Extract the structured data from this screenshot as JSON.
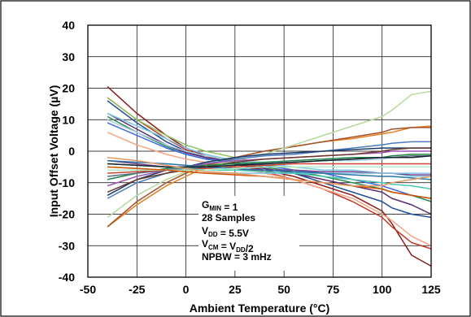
{
  "chart_data": {
    "type": "line",
    "xlabel": "Ambient Temperature (°C)",
    "ylabel": "Input Offset Voltage (µV)",
    "xlim": [
      -50,
      125
    ],
    "ylim": [
      -40,
      40
    ],
    "xticks": [
      -50,
      -25,
      0,
      25,
      50,
      75,
      100,
      125
    ],
    "yticks": [
      -40,
      -30,
      -20,
      -10,
      0,
      10,
      20,
      30,
      40
    ],
    "grid": true,
    "annotation": {
      "lines": [
        {
          "parts": [
            {
              "t": "G"
            },
            {
              "t": "MIN",
              "sub": true
            },
            {
              "t": " = 1"
            }
          ]
        },
        {
          "parts": [
            {
              "t": "28 Samples"
            }
          ]
        },
        {
          "parts": [
            {
              "t": "V"
            },
            {
              "t": "DD",
              "sub": true
            },
            {
              "t": " = 5.5V"
            }
          ]
        },
        {
          "parts": [
            {
              "t": "V"
            },
            {
              "t": "CM",
              "sub": true
            },
            {
              "t": " = V"
            },
            {
              "t": "DD",
              "sub": true
            },
            {
              "t": "/2"
            }
          ]
        },
        {
          "parts": [
            {
              "t": "NPBW = 3 mHz"
            }
          ]
        }
      ]
    },
    "x": [
      -40,
      -25,
      -10,
      0,
      10,
      25,
      40,
      55,
      70,
      85,
      100,
      105,
      115,
      125
    ],
    "series": [
      {
        "color": "#8b1a1a",
        "values": [
          20.5,
          12,
          5,
          1,
          -1.5,
          -4,
          -6,
          -8,
          -11,
          -14,
          -19,
          -23,
          -33,
          -36.5
        ]
      },
      {
        "color": "#c0392b",
        "values": [
          17,
          10,
          4,
          0.5,
          -2,
          -4,
          -6.5,
          -9,
          -12,
          -16,
          -21,
          -24,
          -29,
          -31
        ]
      },
      {
        "color": "#f4a582",
        "values": [
          6,
          2,
          -1,
          -2.5,
          -3.5,
          -5,
          -7,
          -9,
          -12,
          -15,
          -20,
          -22,
          -27,
          -30
        ]
      },
      {
        "color": "#1f4e99",
        "values": [
          16,
          9,
          3,
          0,
          -2,
          -4,
          -5.5,
          -7,
          -10,
          -13,
          -16,
          -18,
          -20,
          -21
        ]
      },
      {
        "color": "#5b2c6f",
        "values": [
          12,
          7,
          2,
          -0.5,
          -2,
          -4,
          -5.5,
          -7,
          -9,
          -11,
          -13,
          -15,
          -17,
          -20
        ]
      },
      {
        "color": "#8fbf5a",
        "values": [
          17,
          10,
          5,
          2,
          0,
          -2,
          -4,
          -6,
          -8,
          -10,
          -12,
          -13,
          -14,
          -15
        ]
      },
      {
        "color": "#2e8b57",
        "values": [
          11,
          6,
          1.5,
          -1,
          -2.5,
          -3.5,
          -5,
          -6.5,
          -8,
          -10,
          -12,
          -13,
          -14,
          -16
        ]
      },
      {
        "color": "#4169e1",
        "values": [
          9,
          5,
          1,
          -1,
          -2.5,
          -3,
          -4.5,
          -6,
          -7,
          -9,
          -11,
          -12,
          -14,
          -15
        ]
      },
      {
        "color": "#7ec8e3",
        "values": [
          12,
          8,
          4,
          1,
          -1,
          -3,
          -4,
          -5,
          -6,
          -6,
          -7,
          -7,
          -8,
          -8
        ]
      },
      {
        "color": "#a9cce3",
        "values": [
          10,
          6,
          2,
          0,
          -1.5,
          -3,
          -3.5,
          -3.5,
          -3,
          -3,
          -2.5,
          -2,
          -2,
          -1.5
        ]
      },
      {
        "color": "#e67e22",
        "values": [
          -24,
          -17,
          -11,
          -8,
          -5,
          -2,
          0,
          1.5,
          3,
          4,
          5.5,
          6,
          7.5,
          8
        ]
      },
      {
        "color": "#a0522d",
        "values": [
          -24,
          -16,
          -10,
          -7,
          -4.5,
          -2,
          0,
          1.5,
          3,
          4.5,
          6,
          7,
          7.5,
          7.5
        ]
      },
      {
        "color": "#b5d99c",
        "values": [
          -21,
          -14,
          -9,
          -6.5,
          -5,
          -3,
          -1,
          2,
          5,
          8,
          11,
          13,
          18,
          19
        ]
      },
      {
        "color": "#4b7bc0",
        "values": [
          -15,
          -10,
          -7,
          -5,
          -4,
          -2.5,
          -1.5,
          -1,
          0,
          1,
          2,
          2.5,
          3,
          3
        ]
      },
      {
        "color": "#1a3a6b",
        "values": [
          -14,
          -9,
          -6,
          -5,
          -3.5,
          -2,
          -1,
          -0.5,
          0,
          0.5,
          1,
          1,
          1,
          1
        ]
      },
      {
        "color": "#9b59b6",
        "values": [
          -11,
          -8,
          -6,
          -5,
          -4,
          -3,
          -2.5,
          -2,
          -1.5,
          -1,
          -0.5,
          0,
          0,
          0
        ]
      },
      {
        "color": "#6b3a2a",
        "values": [
          -13,
          -9,
          -7,
          -6,
          -5,
          -3.5,
          -2.5,
          -2,
          -1.5,
          -1,
          0,
          0.5,
          1,
          1
        ]
      },
      {
        "color": "#1e8449",
        "values": [
          -9,
          -7,
          -5.5,
          -5,
          -4.5,
          -4,
          -3.5,
          -3,
          -2.5,
          -2,
          -2,
          -1.5,
          -1,
          -1
        ]
      },
      {
        "color": "#5d6d7e",
        "values": [
          -8,
          -7,
          -6,
          -5.5,
          -5,
          -4.5,
          -4,
          -3.5,
          -3,
          -2.5,
          -2,
          -2,
          -1.5,
          -1.5
        ]
      },
      {
        "color": "#76448a",
        "values": [
          -3,
          -4,
          -5,
          -5.5,
          -6,
          -6,
          -6,
          -6,
          -6.5,
          -6.5,
          -7,
          -7,
          -7.5,
          -7.5
        ]
      },
      {
        "color": "#cb4335",
        "values": [
          -7,
          -6.5,
          -6,
          -6,
          -5.5,
          -5,
          -4.5,
          -4,
          -4,
          -4,
          -4,
          -4,
          -4,
          -4
        ]
      },
      {
        "color": "#85c1e9",
        "values": [
          -5,
          -5.5,
          -6,
          -6.5,
          -7,
          -7,
          -7,
          -7,
          -7,
          -7,
          -7,
          -7,
          -7,
          -7
        ]
      },
      {
        "color": "#48c9b0",
        "values": [
          -4,
          -4.5,
          -5,
          -5.5,
          -6,
          -6,
          -6.5,
          -7,
          -8,
          -9,
          -10,
          -10.5,
          -11,
          -12
        ]
      },
      {
        "color": "#2874a6",
        "values": [
          -3,
          -3.5,
          -4,
          -4.5,
          -5,
          -5.5,
          -6,
          -6.5,
          -7,
          -7.5,
          -8,
          -8,
          -8.5,
          -9
        ]
      },
      {
        "color": "#abebc6",
        "values": [
          -6,
          -6,
          -6,
          -6,
          -6,
          -5.5,
          -5,
          -5,
          -5,
          -5,
          -5,
          -5,
          -5,
          -5
        ]
      },
      {
        "color": "#d35400",
        "values": [
          -5,
          -5.5,
          -6,
          -6.5,
          -7,
          -7.5,
          -8,
          -9,
          -10,
          -11,
          -12,
          -13,
          -14,
          -15
        ]
      },
      {
        "color": "#17202a",
        "values": [
          -4,
          -4.5,
          -5,
          -5,
          -5,
          -4.5,
          -4,
          -3.5,
          -3,
          -2.5,
          -2,
          -2,
          -2,
          -1.5
        ]
      },
      {
        "color": "#e59866",
        "values": [
          -2,
          -3,
          -4.5,
          -5.5,
          -6.5,
          -7,
          -8,
          -9,
          -10,
          -11,
          -11,
          -10,
          -9,
          -8
        ]
      }
    ]
  }
}
